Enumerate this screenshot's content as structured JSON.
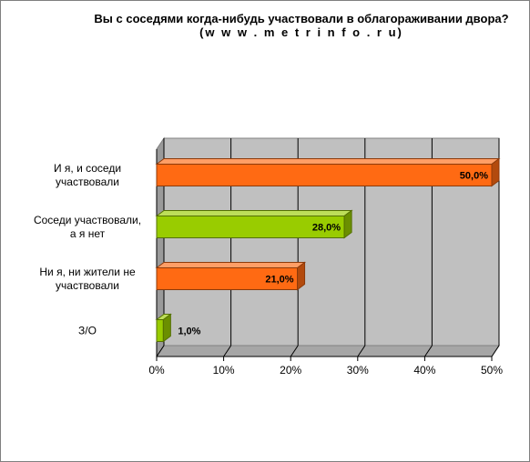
{
  "chart_data": {
    "type": "bar",
    "orientation": "horizontal",
    "title": "Вы с соседями когда-нибудь участвовали в облагораживании двора?",
    "source": "(w w w . m e t r i n f o . r u)",
    "categories": [
      [
        "И я, и соседи",
        "участвовали"
      ],
      [
        "Соседи участвовали,",
        "а я нет"
      ],
      [
        "Ни я, ни жители не",
        "участвовали"
      ],
      [
        "З/О"
      ]
    ],
    "values": [
      50.0,
      28.0,
      21.0,
      1.0
    ],
    "value_labels": [
      "50,0%",
      "28,0%",
      "21,0%",
      "1,0%"
    ],
    "bar_colors": [
      "#ff6a13",
      "#99cc00",
      "#ff6a13",
      "#99cc00"
    ],
    "xlim": [
      0,
      50
    ],
    "xticks": [
      "0%",
      "10%",
      "20%",
      "30%",
      "40%",
      "50%"
    ],
    "grid": true,
    "style": "3d",
    "legend": "none"
  }
}
